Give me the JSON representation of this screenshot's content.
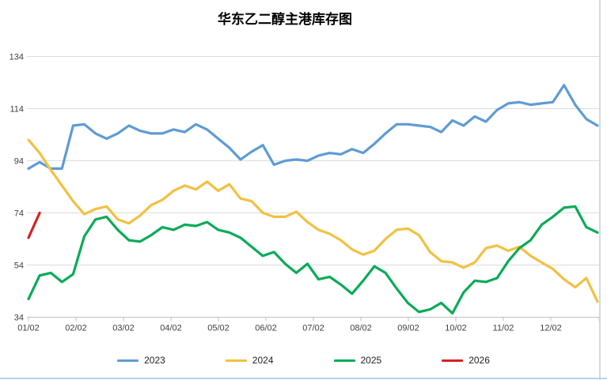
{
  "title": "华东乙二醇主港库存图",
  "chart_data": {
    "type": "line",
    "title": "华东乙二醇主港库存图",
    "x_tick_labels": [
      "01/02",
      "02/02",
      "03/02",
      "04/02",
      "05/02",
      "06/02",
      "07/02",
      "08/02",
      "09/02",
      "10/02",
      "11/02",
      "12/02"
    ],
    "y_ticks": [
      34,
      54,
      74,
      94,
      114,
      134
    ],
    "ylim": [
      34,
      134
    ],
    "grid": true,
    "legend_position": "bottom",
    "x_unit": "weekly points, months labeled",
    "series": [
      {
        "name": "2023",
        "color": "#5F9BD5",
        "values": [
          91,
          93.5,
          91,
          91,
          107.5,
          108,
          104.5,
          102.5,
          104.5,
          107.5,
          105.5,
          104.5,
          104.5,
          106,
          105,
          108,
          106,
          102.5,
          99,
          94.5,
          97.5,
          100,
          92.5,
          94,
          94.5,
          94,
          96,
          97,
          96.5,
          98.5,
          97,
          100.5,
          104.5,
          108,
          108,
          107.5,
          107,
          105,
          109.5,
          107.5,
          111,
          109,
          113.5,
          116,
          116.5,
          115.5,
          116,
          116.5,
          123,
          115.5,
          110,
          107.5
        ]
      },
      {
        "name": "2024",
        "color": "#F2C141",
        "values": [
          102,
          97,
          90.5,
          84.5,
          78.5,
          73.5,
          75.5,
          76.5,
          71.5,
          70,
          73,
          77,
          79,
          82.5,
          84.5,
          83,
          86,
          82.5,
          85,
          79.5,
          78.5,
          74,
          72.5,
          72.5,
          74.5,
          70.5,
          67.5,
          66,
          63.5,
          60,
          58,
          59.5,
          64,
          67.5,
          68,
          65.5,
          59,
          55.5,
          55,
          53,
          55,
          60.5,
          61.5,
          59.5,
          61,
          57.5,
          55,
          52.5,
          48.5,
          45.5,
          49,
          40
        ]
      },
      {
        "name": "2025",
        "color": "#0BAB58",
        "values": [
          41,
          50,
          51,
          47.5,
          50.5,
          65,
          71.5,
          72.5,
          67.5,
          63.5,
          63,
          65.5,
          68.5,
          67.5,
          69.5,
          69,
          70.5,
          67.5,
          66.5,
          64.5,
          61,
          57.5,
          59,
          54.5,
          51,
          54.5,
          48.5,
          49.5,
          46.5,
          43,
          48,
          53.5,
          51,
          45,
          39.5,
          36,
          37,
          39.5,
          35.5,
          43.5,
          48,
          47.5,
          49,
          55.5,
          60.5,
          63.5,
          69.5,
          72.5,
          76,
          76.5,
          68.5,
          66.5
        ]
      },
      {
        "name": "2026",
        "color": "#D42222",
        "values": [
          64.5,
          74
        ]
      }
    ]
  },
  "legend": {
    "items": [
      {
        "label": "2023",
        "color": "#5F9BD5"
      },
      {
        "label": "2024",
        "color": "#F2C141"
      },
      {
        "label": "2025",
        "color": "#0BAB58"
      },
      {
        "label": "2026",
        "color": "#D42222"
      }
    ]
  },
  "style": {
    "gridline_color": "#DCDCDC",
    "axis_color": "#BFBFBF",
    "tick_label_color": "#404040"
  }
}
